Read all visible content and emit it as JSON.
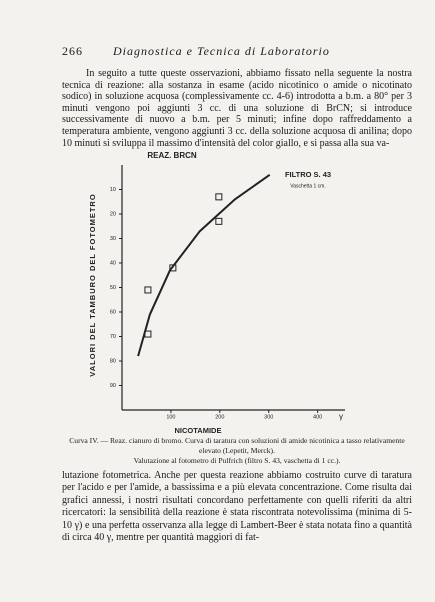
{
  "header": {
    "page_number": "266",
    "title": "Diagnostica e Tecnica di Laboratorio"
  },
  "paragraphs": [
    "In seguito a tutte queste osservazioni, abbiamo fissato nella seguente la nostra tecnica di reazione: alla sostanza in esame (acido nicotinico o amide o nicotinato sodico) in soluzione acquosa (complessivamente cc. 4-6) introdotta a b.m. a 80° per 3 minuti vengono poi aggiunti 3 cc. di una soluzione di BrCN; si introduce successivamente di nuovo a b.m. per 5 minuti; infine dopo raffreddamento a temperatura ambiente, vengono aggiunti 3 cc. della soluzione acquosa di anilina; dopo 10 minuti si sviluppa il massimo d'intensità del color giallo, e si passa alla sua va-",
    "lutazione fotometrica. Anche per questa reazione abbiamo costruito curve di taratura per l'acido e per l'amide, a bassissima e a più elevata concentrazione. Come risulta dai grafici annessi, i nostri risultati concordano perfettamente con quelli riferiti da altri ricercatori: la sensibilità della reazione è stata riscontrata notevolissima (minima di 5-10 γ) e una perfetta osservanza alla legge di Lambert-Beer è stata notata fino a quantità di circa 40 γ, mentre per quantità maggiori di fat-"
  ],
  "caption": {
    "lines": [
      "Curva IV. — Reaz. cianuro di bromo. Curva di taratura con soluzioni di amide nicotinica a tasso relativamente elevato (Lepetit, Merck).",
      "Valutazione al fotometro di Pulfrich (filtro S. 43, vaschetta di 1 cc.)."
    ]
  },
  "chart_data": {
    "type": "scatter",
    "title": "REAZ. BRCN",
    "annotations": [
      "FILTRO S. 43",
      "Vaschetta 1 cm."
    ],
    "x_label": "NICOTAMIDE",
    "x_unit": "γ",
    "y_label": "VALORI DEL TAMBURO DEL FOTOMETRO",
    "xlim": [
      0,
      460
    ],
    "xticks": [
      100,
      200,
      300,
      400
    ],
    "ylim": [
      100,
      0
    ],
    "yticks": [
      10,
      20,
      30,
      40,
      50,
      60,
      70,
      80,
      90
    ],
    "color": "#222",
    "series": [
      {
        "type": "scatter",
        "x": [
          53,
          53,
          104,
          198,
          198
        ],
        "y": [
          51,
          69,
          42,
          13,
          23
        ]
      },
      {
        "type": "line",
        "x": [
          33,
          57,
          98,
          159,
          231,
          302
        ],
        "y": [
          78,
          61,
          43,
          27,
          14,
          4
        ]
      }
    ]
  }
}
